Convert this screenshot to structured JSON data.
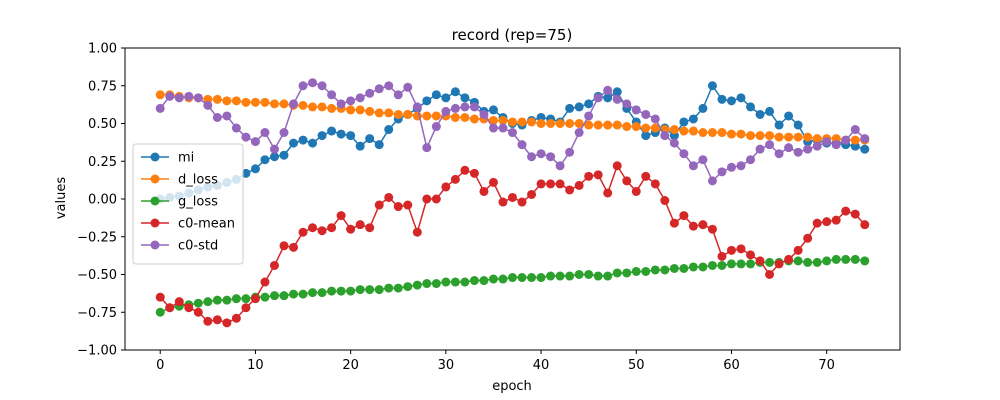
{
  "chart_data": {
    "type": "line",
    "title": "record (rep=75)",
    "xlabel": "epoch",
    "ylabel": "values",
    "xlim": [
      -3.7,
      77.7
    ],
    "ylim": [
      -1.0,
      1.0
    ],
    "xticks": [
      0,
      10,
      20,
      30,
      40,
      50,
      60,
      70
    ],
    "yticks": [
      -1.0,
      -0.75,
      -0.5,
      -0.25,
      0.0,
      0.25,
      0.5,
      0.75,
      1.0
    ],
    "ytick_labels": [
      "−1.00",
      "−0.75",
      "−0.50",
      "−0.25",
      "0.00",
      "0.25",
      "0.50",
      "0.75",
      "1.00"
    ],
    "grid": false,
    "legend_position": "center-left",
    "x": [
      0,
      1,
      2,
      3,
      4,
      5,
      6,
      7,
      8,
      9,
      10,
      11,
      12,
      13,
      14,
      15,
      16,
      17,
      18,
      19,
      20,
      21,
      22,
      23,
      24,
      25,
      26,
      27,
      28,
      29,
      30,
      31,
      32,
      33,
      34,
      35,
      36,
      37,
      38,
      39,
      40,
      41,
      42,
      43,
      44,
      45,
      46,
      47,
      48,
      49,
      50,
      51,
      52,
      53,
      54,
      55,
      56,
      57,
      58,
      59,
      60,
      61,
      62,
      63,
      64,
      65,
      66,
      67,
      68,
      69,
      70,
      71,
      72,
      73,
      74
    ],
    "series": [
      {
        "name": "mi",
        "color": "#1f77b4",
        "values": [
          0.0,
          0.01,
          0.02,
          0.04,
          0.06,
          0.08,
          0.09,
          0.11,
          0.13,
          0.17,
          0.2,
          0.26,
          0.28,
          0.29,
          0.37,
          0.39,
          0.37,
          0.42,
          0.45,
          0.43,
          0.42,
          0.35,
          0.4,
          0.36,
          0.46,
          0.53,
          0.56,
          0.6,
          0.65,
          0.69,
          0.67,
          0.71,
          0.67,
          0.64,
          0.58,
          0.59,
          0.54,
          0.5,
          0.49,
          0.52,
          0.54,
          0.53,
          0.51,
          0.6,
          0.61,
          0.63,
          0.68,
          0.67,
          0.71,
          0.6,
          0.51,
          0.42,
          0.44,
          0.47,
          0.42,
          0.51,
          0.53,
          0.6,
          0.75,
          0.66,
          0.65,
          0.67,
          0.61,
          0.56,
          0.58,
          0.49,
          0.55,
          0.49,
          0.38,
          0.39,
          0.37,
          0.37,
          0.36,
          0.35,
          0.33
        ]
      },
      {
        "name": "d_loss",
        "color": "#ff7f0e",
        "values": [
          0.69,
          0.69,
          0.68,
          0.67,
          0.67,
          0.66,
          0.66,
          0.65,
          0.65,
          0.64,
          0.64,
          0.64,
          0.63,
          0.63,
          0.62,
          0.62,
          0.61,
          0.61,
          0.6,
          0.6,
          0.59,
          0.59,
          0.58,
          0.57,
          0.57,
          0.56,
          0.56,
          0.55,
          0.55,
          0.55,
          0.55,
          0.54,
          0.54,
          0.53,
          0.53,
          0.52,
          0.52,
          0.51,
          0.51,
          0.51,
          0.5,
          0.5,
          0.5,
          0.5,
          0.5,
          0.49,
          0.49,
          0.49,
          0.49,
          0.48,
          0.48,
          0.47,
          0.47,
          0.46,
          0.46,
          0.45,
          0.45,
          0.44,
          0.44,
          0.44,
          0.43,
          0.43,
          0.42,
          0.42,
          0.42,
          0.41,
          0.41,
          0.41,
          0.41,
          0.4,
          0.4,
          0.4,
          0.39,
          0.39,
          0.39
        ]
      },
      {
        "name": "g_loss",
        "color": "#2ca02c",
        "values": [
          -0.75,
          -0.72,
          -0.71,
          -0.7,
          -0.69,
          -0.68,
          -0.67,
          -0.67,
          -0.66,
          -0.66,
          -0.65,
          -0.65,
          -0.64,
          -0.64,
          -0.63,
          -0.63,
          -0.62,
          -0.62,
          -0.61,
          -0.61,
          -0.61,
          -0.6,
          -0.6,
          -0.6,
          -0.59,
          -0.59,
          -0.58,
          -0.57,
          -0.56,
          -0.56,
          -0.55,
          -0.55,
          -0.55,
          -0.54,
          -0.54,
          -0.53,
          -0.53,
          -0.52,
          -0.52,
          -0.52,
          -0.52,
          -0.51,
          -0.51,
          -0.51,
          -0.5,
          -0.5,
          -0.51,
          -0.51,
          -0.49,
          -0.49,
          -0.48,
          -0.48,
          -0.47,
          -0.47,
          -0.46,
          -0.46,
          -0.45,
          -0.45,
          -0.44,
          -0.44,
          -0.43,
          -0.43,
          -0.43,
          -0.42,
          -0.42,
          -0.42,
          -0.41,
          -0.41,
          -0.42,
          -0.42,
          -0.41,
          -0.4,
          -0.4,
          -0.4,
          -0.41
        ]
      },
      {
        "name": "c0-mean",
        "color": "#d62728",
        "values": [
          -0.65,
          -0.72,
          -0.68,
          -0.72,
          -0.75,
          -0.81,
          -0.8,
          -0.82,
          -0.79,
          -0.72,
          -0.66,
          -0.55,
          -0.44,
          -0.31,
          -0.32,
          -0.22,
          -0.19,
          -0.21,
          -0.19,
          -0.11,
          -0.2,
          -0.17,
          -0.19,
          -0.04,
          0.01,
          -0.05,
          -0.04,
          -0.22,
          0.0,
          0.0,
          0.08,
          0.13,
          0.19,
          0.17,
          0.05,
          0.11,
          -0.02,
          0.01,
          -0.02,
          0.03,
          0.1,
          0.1,
          0.1,
          0.06,
          0.09,
          0.15,
          0.16,
          0.04,
          0.22,
          0.12,
          0.05,
          0.15,
          0.1,
          -0.01,
          -0.16,
          -0.11,
          -0.18,
          -0.17,
          -0.2,
          -0.38,
          -0.34,
          -0.33,
          -0.37,
          -0.41,
          -0.5,
          -0.43,
          -0.4,
          -0.34,
          -0.26,
          -0.16,
          -0.15,
          -0.14,
          -0.08,
          -0.1,
          -0.17
        ]
      },
      {
        "name": "c0-std",
        "color": "#9467bd",
        "values": [
          0.6,
          0.68,
          0.67,
          0.68,
          0.67,
          0.62,
          0.54,
          0.55,
          0.47,
          0.41,
          0.38,
          0.44,
          0.33,
          0.44,
          0.63,
          0.75,
          0.77,
          0.75,
          0.69,
          0.63,
          0.65,
          0.67,
          0.7,
          0.73,
          0.75,
          0.69,
          0.74,
          0.61,
          0.34,
          0.48,
          0.58,
          0.6,
          0.61,
          0.61,
          0.56,
          0.47,
          0.47,
          0.44,
          0.36,
          0.28,
          0.3,
          0.28,
          0.22,
          0.31,
          0.44,
          0.55,
          0.67,
          0.72,
          0.66,
          0.63,
          0.59,
          0.56,
          0.53,
          0.42,
          0.37,
          0.3,
          0.22,
          0.26,
          0.12,
          0.18,
          0.21,
          0.22,
          0.26,
          0.33,
          0.36,
          0.3,
          0.34,
          0.31,
          0.33,
          0.35,
          0.38,
          0.36,
          0.39,
          0.46,
          0.4
        ]
      }
    ]
  }
}
